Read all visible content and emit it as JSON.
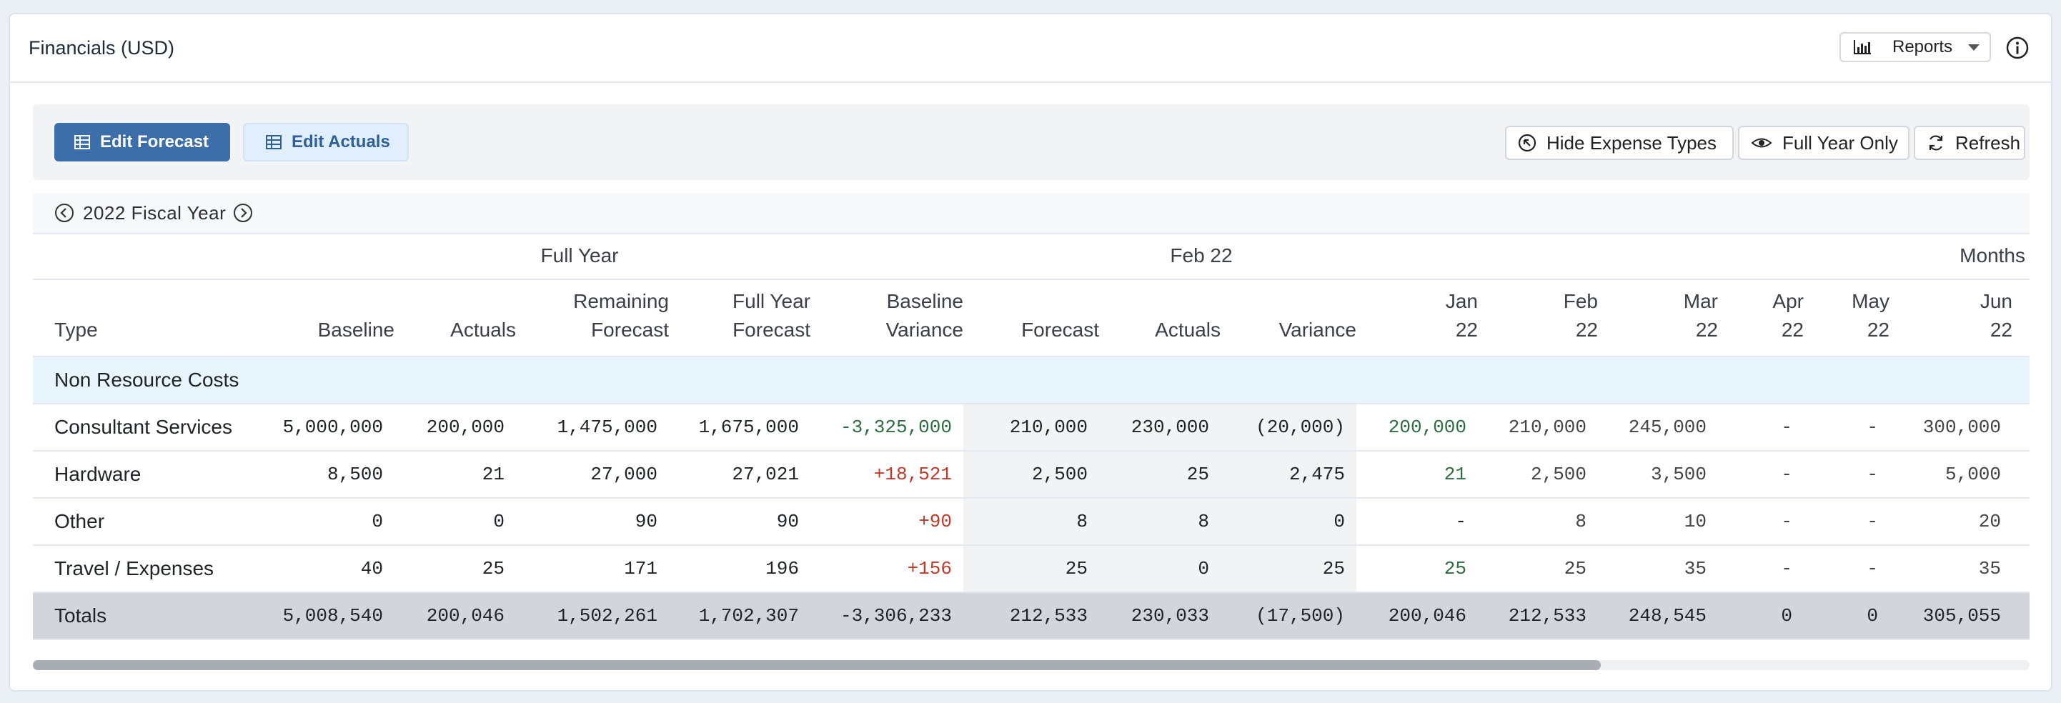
{
  "title": "Financials (USD)",
  "reports_label": "Reports",
  "toolbar": {
    "edit_forecast": "Edit Forecast",
    "edit_actuals": "Edit Actuals",
    "hide_expense_types": "Hide Expense Types",
    "full_year_only": "Full Year Only",
    "refresh": "Refresh"
  },
  "fiscal_year": "2022 Fiscal Year",
  "groups": {
    "full_year": "Full Year",
    "month": "Feb 22",
    "months": "Months"
  },
  "columns": {
    "type": "Type",
    "baseline": "Baseline",
    "actuals": "Actuals",
    "remaining_forecast_1": "Remaining",
    "remaining_forecast_2": "Forecast",
    "full_year_forecast_1": "Full Year",
    "full_year_forecast_2": "Forecast",
    "baseline_variance_1": "Baseline",
    "baseline_variance_2": "Variance",
    "m_forecast": "Forecast",
    "m_actuals": "Actuals",
    "m_variance": "Variance",
    "jan_1": "Jan",
    "jan_2": "22",
    "feb_1": "Feb",
    "feb_2": "22",
    "mar_1": "Mar",
    "mar_2": "22",
    "apr_1": "Apr",
    "apr_2": "22",
    "may_1": "May",
    "may_2": "22",
    "jun_1": "Jun",
    "jun_2": "22"
  },
  "section": "Non Resource Costs",
  "rows": [
    {
      "type": "Consultant Services",
      "baseline": "5,000,000",
      "actuals": "200,000",
      "remaining": "1,475,000",
      "fy_forecast": "1,675,000",
      "variance": "-3,325,000",
      "m_forecast": "210,000",
      "m_actuals": "230,000",
      "m_variance": "(20,000)",
      "jan": "200,000",
      "feb": "210,000",
      "mar": "245,000",
      "apr": "-",
      "may": "-",
      "jun": "300,000"
    },
    {
      "type": "Hardware",
      "baseline": "8,500",
      "actuals": "21",
      "remaining": "27,000",
      "fy_forecast": "27,021",
      "variance": "+18,521",
      "m_forecast": "2,500",
      "m_actuals": "25",
      "m_variance": "2,475",
      "jan": "21",
      "feb": "2,500",
      "mar": "3,500",
      "apr": "-",
      "may": "-",
      "jun": "5,000"
    },
    {
      "type": "Other",
      "baseline": "0",
      "actuals": "0",
      "remaining": "90",
      "fy_forecast": "90",
      "variance": "+90",
      "m_forecast": "8",
      "m_actuals": "8",
      "m_variance": "0",
      "jan": "-",
      "feb": "8",
      "mar": "10",
      "apr": "-",
      "may": "-",
      "jun": "20"
    },
    {
      "type": "Travel / Expenses",
      "baseline": "40",
      "actuals": "25",
      "remaining": "171",
      "fy_forecast": "196",
      "variance": "+156",
      "m_forecast": "25",
      "m_actuals": "0",
      "m_variance": "25",
      "jan": "25",
      "feb": "25",
      "mar": "35",
      "apr": "-",
      "may": "-",
      "jun": "35"
    }
  ],
  "totals": {
    "type": "Totals",
    "baseline": "5,008,540",
    "actuals": "200,046",
    "remaining": "1,502,261",
    "fy_forecast": "1,702,307",
    "variance": "-3,306,233",
    "m_forecast": "212,533",
    "m_actuals": "230,033",
    "m_variance": "(17,500)",
    "jan": "200,046",
    "feb": "212,533",
    "mar": "248,545",
    "apr": "0",
    "may": "0",
    "jun": "305,055"
  },
  "colors": {
    "primary": "#3c6ea9",
    "negative_variance": "#2e6b3e",
    "positive_variance": "#c0392b",
    "section_bg": "#e9f5fd",
    "totals_bg": "#d2d5d9"
  }
}
